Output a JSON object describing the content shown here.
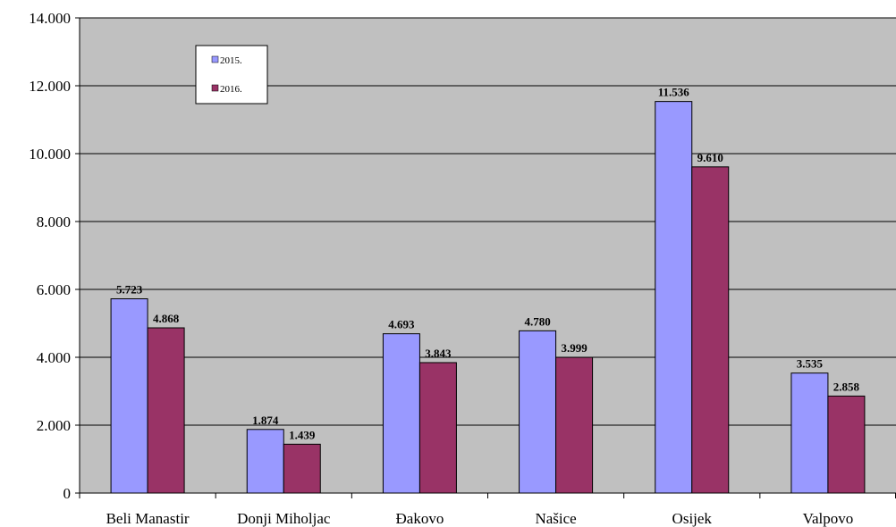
{
  "chart_data": {
    "type": "bar",
    "categories": [
      "Beli Manastir",
      "Donji Miholjac",
      "Đakovo",
      "Našice",
      "Osijek",
      "Valpovo"
    ],
    "series": [
      {
        "name": "2015.",
        "color": "#9999ff",
        "values": [
          5723,
          1874,
          4693,
          4780,
          11536,
          3535
        ],
        "labels": [
          "5.723",
          "1.874",
          "4.693",
          "4.780",
          "11.536",
          "3.535"
        ]
      },
      {
        "name": "2016.",
        "color": "#993366",
        "values": [
          4868,
          1439,
          3843,
          3999,
          9610,
          2858
        ],
        "labels": [
          "4.868",
          "1.439",
          "3.843",
          "3.999",
          "9.610",
          "2.858"
        ]
      }
    ],
    "ylim": [
      0,
      14000
    ],
    "yticks": [
      0,
      2000,
      4000,
      6000,
      8000,
      10000,
      12000,
      14000
    ],
    "ytick_labels": [
      "0",
      "2.000",
      "4.000",
      "6.000",
      "8.000",
      "10.000",
      "12.000",
      "14.000"
    ],
    "title": "",
    "xlabel": "",
    "ylabel": "",
    "grid": "horizontal",
    "plot_background": "#c0c0c0",
    "legend_position": "top-left"
  }
}
